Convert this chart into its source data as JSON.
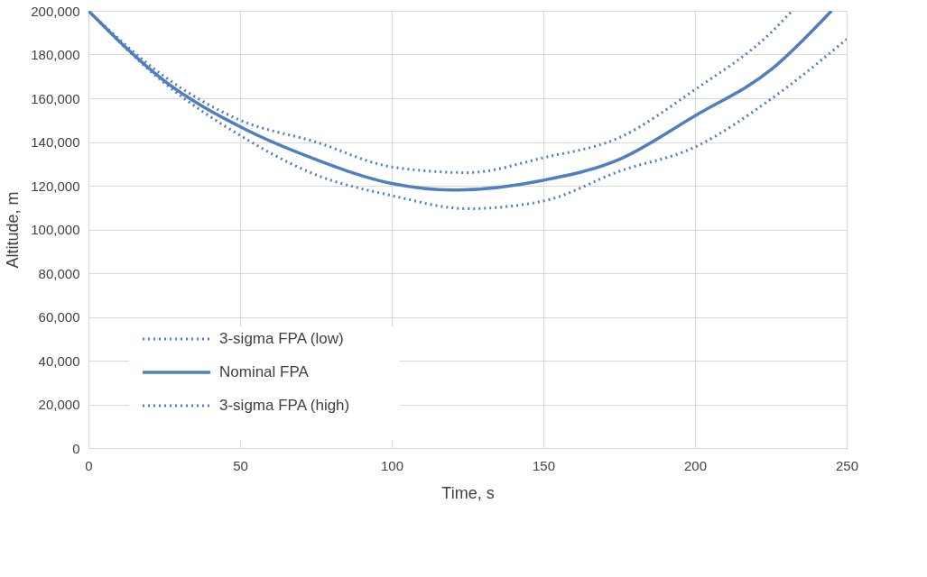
{
  "chart_data": {
    "type": "line",
    "xlabel": "Time, s",
    "ylabel": "Altitude, m",
    "xlim": [
      0,
      250
    ],
    "xticks": [
      0,
      50,
      100,
      150,
      200,
      250
    ],
    "ylim": [
      0,
      200000
    ],
    "yticks": [
      0,
      {
        "value": 20000,
        "label": "20,000"
      },
      {
        "value": 40000,
        "label": "40,000"
      },
      {
        "value": 60000,
        "label": "60,000"
      },
      {
        "value": 80000,
        "label": "80,000"
      },
      {
        "value": 100000,
        "label": "100,000"
      },
      {
        "value": 120000,
        "label": "120,000"
      },
      {
        "value": 140000,
        "label": "140,000"
      },
      {
        "value": 160000,
        "label": "160,000"
      },
      {
        "value": 180000,
        "label": "180,000"
      },
      {
        "value": 200000,
        "label": "200,000"
      }
    ],
    "grid": true,
    "legend": "bottom left",
    "series": [
      {
        "name": "3-sigma FPA (low)",
        "color": "#4f7fbf",
        "line_style": "dotted",
        "x": [
          0,
          25,
          50,
          75,
          100,
          125,
          150,
          175,
          200,
          225,
          232
        ],
        "values": [
          200000,
          170000,
          150000,
          140000,
          128600,
          126000,
          132800,
          142000,
          164000,
          190000,
          200000
        ]
      },
      {
        "name": "Nominal FPA",
        "color": "#4f7fbf",
        "line_style": "solid",
        "x": [
          0,
          25,
          50,
          75,
          100,
          120,
          150,
          175,
          200,
          225,
          245
        ],
        "values": [
          200000,
          168000,
          147000,
          132000,
          121000,
          118000,
          122500,
          132000,
          152000,
          173000,
          200000
        ]
      },
      {
        "name": "3-sigma FPA (high)",
        "color": "#4f7fbf",
        "line_style": "dotted",
        "x": [
          0,
          25,
          50,
          75,
          100,
          125,
          150,
          175,
          200,
          225,
          250
        ],
        "values": [
          200000,
          167000,
          143000,
          125000,
          115500,
          109500,
          113000,
          126600,
          137700,
          159600,
          187000
        ]
      }
    ]
  }
}
